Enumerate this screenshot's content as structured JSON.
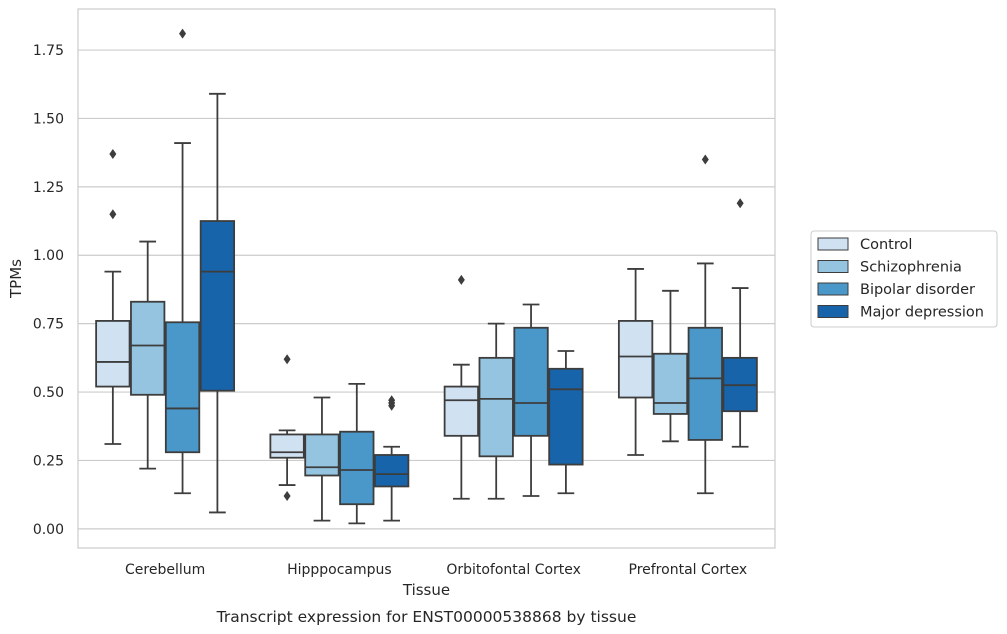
{
  "chart_data": {
    "type": "box",
    "caption": "Transcript expression for ENST00000538868 by tissue",
    "xlabel": "Tissue",
    "ylabel": "TPMs",
    "ylim": [
      -0.07,
      1.9
    ],
    "yticks": [
      "0.00",
      "0.25",
      "0.50",
      "0.75",
      "1.00",
      "1.25",
      "1.50",
      "1.75"
    ],
    "grid": true,
    "legend_position": "right",
    "categories": [
      "Cerebellum",
      "Hipppocampus",
      "Orbitofontal Cortex",
      "Prefrontal Cortex"
    ],
    "series": [
      {
        "name": "Control",
        "color": "#d0e1f2",
        "boxes": [
          {
            "whislo": 0.31,
            "q1": 0.52,
            "med": 0.61,
            "q3": 0.76,
            "whishi": 0.94,
            "fliers": [
              1.15,
              1.37
            ]
          },
          {
            "whislo": 0.16,
            "q1": 0.26,
            "med": 0.28,
            "q3": 0.345,
            "whishi": 0.36,
            "fliers": [
              0.12,
              0.62
            ]
          },
          {
            "whislo": 0.11,
            "q1": 0.34,
            "med": 0.47,
            "q3": 0.52,
            "whishi": 0.6,
            "fliers": [
              0.91
            ]
          },
          {
            "whislo": 0.27,
            "q1": 0.48,
            "med": 0.63,
            "q3": 0.76,
            "whishi": 0.95,
            "fliers": []
          }
        ]
      },
      {
        "name": "Schizophrenia",
        "color": "#94c4df",
        "boxes": [
          {
            "whislo": 0.22,
            "q1": 0.49,
            "med": 0.67,
            "q3": 0.83,
            "whishi": 1.05,
            "fliers": []
          },
          {
            "whislo": 0.03,
            "q1": 0.195,
            "med": 0.225,
            "q3": 0.345,
            "whishi": 0.48,
            "fliers": []
          },
          {
            "whislo": 0.11,
            "q1": 0.265,
            "med": 0.475,
            "q3": 0.625,
            "whishi": 0.75,
            "fliers": []
          },
          {
            "whislo": 0.32,
            "q1": 0.42,
            "med": 0.46,
            "q3": 0.64,
            "whishi": 0.87,
            "fliers": []
          }
        ]
      },
      {
        "name": "Bipolar disorder",
        "color": "#4a98c9",
        "boxes": [
          {
            "whislo": 0.13,
            "q1": 0.28,
            "med": 0.44,
            "q3": 0.755,
            "whishi": 1.41,
            "fliers": [
              1.81
            ]
          },
          {
            "whislo": 0.02,
            "q1": 0.09,
            "med": 0.215,
            "q3": 0.355,
            "whishi": 0.53,
            "fliers": []
          },
          {
            "whislo": 0.12,
            "q1": 0.34,
            "med": 0.46,
            "q3": 0.735,
            "whishi": 0.82,
            "fliers": []
          },
          {
            "whislo": 0.13,
            "q1": 0.325,
            "med": 0.55,
            "q3": 0.735,
            "whishi": 0.97,
            "fliers": [
              1.35
            ]
          }
        ]
      },
      {
        "name": "Major depression",
        "color": "#1764ab",
        "boxes": [
          {
            "whislo": 0.06,
            "q1": 0.505,
            "med": 0.94,
            "q3": 1.125,
            "whishi": 1.59,
            "fliers": []
          },
          {
            "whislo": 0.03,
            "q1": 0.155,
            "med": 0.2,
            "q3": 0.27,
            "whishi": 0.3,
            "fliers": [
              0.45,
              0.46,
              0.47
            ]
          },
          {
            "whislo": 0.13,
            "q1": 0.235,
            "med": 0.51,
            "q3": 0.585,
            "whishi": 0.65,
            "fliers": []
          },
          {
            "whislo": 0.3,
            "q1": 0.43,
            "med": 0.525,
            "q3": 0.625,
            "whishi": 0.88,
            "fliers": [
              1.19
            ]
          }
        ]
      }
    ]
  }
}
